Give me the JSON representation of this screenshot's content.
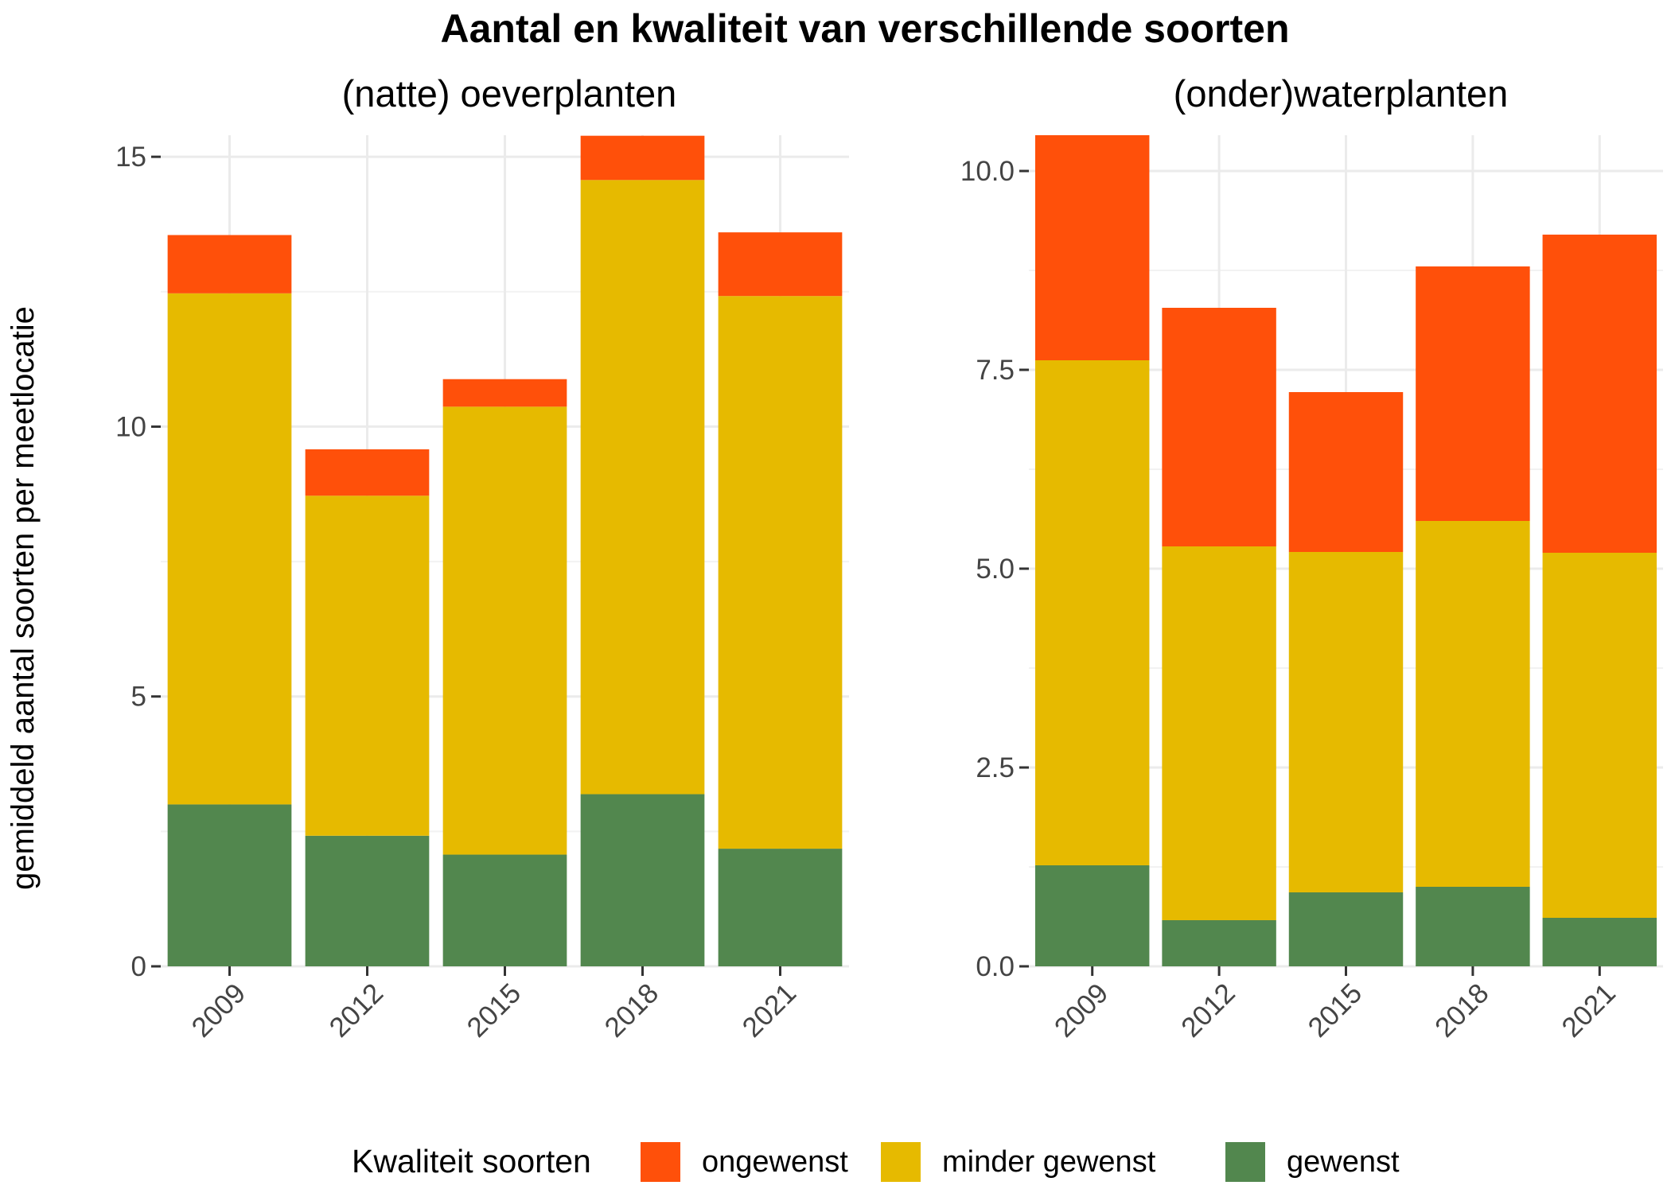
{
  "colors": {
    "ongewenst": "#FF500A",
    "minder_gewenst": "#E6BA00",
    "gewenst": "#52874E"
  },
  "chart_data": {
    "type": "bar",
    "stacked": true,
    "title": "Aantal en kwaliteit van verschillende soorten",
    "ylabel": "gemiddeld aantal soorten per meetlocatie",
    "legend": {
      "title": "Kwaliteit soorten",
      "position": "bottom",
      "entries": [
        {
          "key": "ongewenst",
          "label": "ongewenst"
        },
        {
          "key": "minder_gewenst",
          "label": "minder gewenst"
        },
        {
          "key": "gewenst",
          "label": "gewenst"
        }
      ]
    },
    "panels": [
      {
        "subtitle": "(natte) oeverplanten",
        "categories": [
          "2009",
          "2012",
          "2015",
          "2018",
          "2021"
        ],
        "ylim": [
          0,
          15.4
        ],
        "yticks": [
          0,
          5,
          10,
          15
        ],
        "ytick_labels": [
          "0",
          "5",
          "10",
          "15"
        ],
        "series": [
          {
            "key": "gewenst",
            "name": "gewenst",
            "values": [
              3.0,
              2.42,
              2.07,
              3.19,
              2.18
            ]
          },
          {
            "key": "minder_gewenst",
            "name": "minder gewenst",
            "values": [
              9.47,
              6.3,
              8.3,
              11.38,
              10.24
            ]
          },
          {
            "key": "ongewenst",
            "name": "ongewenst",
            "values": [
              1.08,
              0.86,
              0.51,
              0.82,
              1.18
            ]
          }
        ]
      },
      {
        "subtitle": "(onder)waterplanten",
        "categories": [
          "2009",
          "2012",
          "2015",
          "2018",
          "2021"
        ],
        "ylim": [
          0,
          10.45
        ],
        "yticks": [
          0,
          2.5,
          5,
          7.5,
          10
        ],
        "ytick_labels": [
          "0.0",
          "2.5",
          "5.0",
          "7.5",
          "10.0"
        ],
        "series": [
          {
            "key": "gewenst",
            "name": "gewenst",
            "values": [
              1.27,
              0.58,
              0.93,
              1.0,
              0.61
            ]
          },
          {
            "key": "minder_gewenst",
            "name": "minder gewenst",
            "values": [
              6.35,
              4.7,
              4.28,
              4.6,
              4.59
            ]
          },
          {
            "key": "ongewenst",
            "name": "ongewenst",
            "values": [
              2.83,
              3.0,
              2.01,
              3.2,
              4.0
            ]
          }
        ]
      }
    ]
  }
}
